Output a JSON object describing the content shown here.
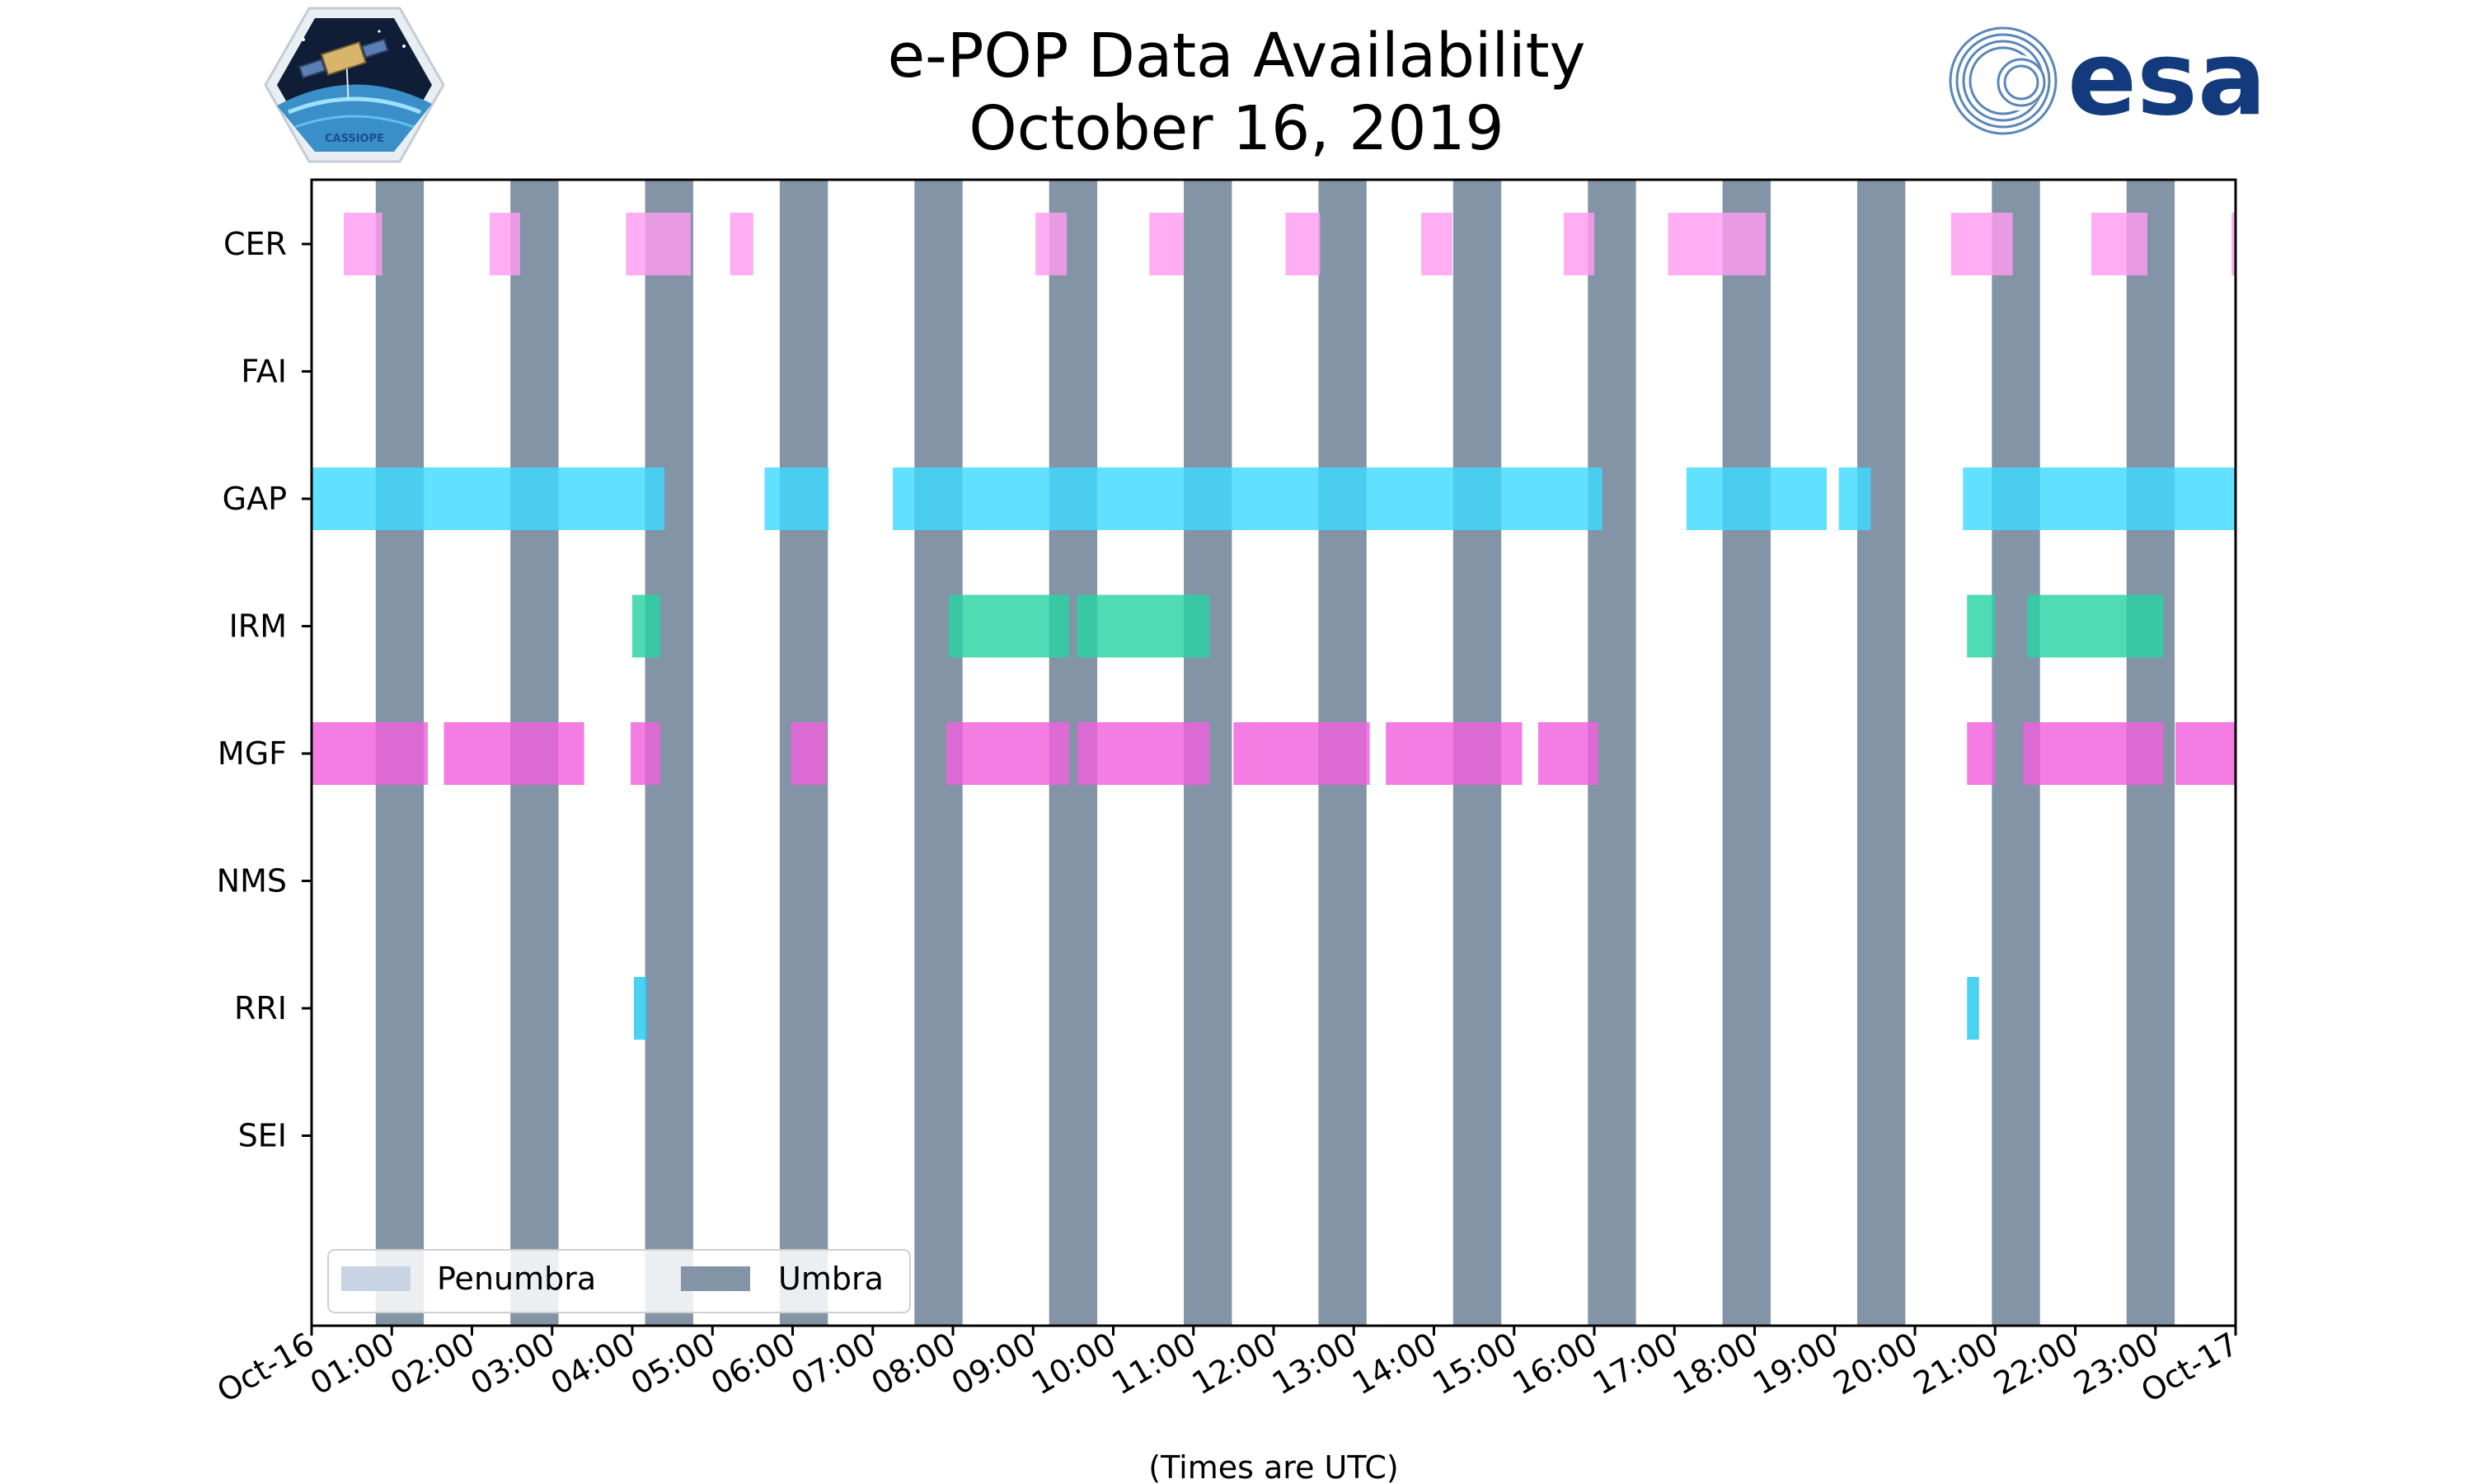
{
  "title": {
    "line1": "e-POP Data Availability",
    "line2": "October 16, 2019"
  },
  "logos": {
    "left": {
      "text": "CASSIOPE"
    },
    "right": {
      "text": "esa"
    }
  },
  "colors": {
    "umbra": "#8294a6",
    "penumbra": "#c8d4e3",
    "CER": "#ff9cf0",
    "GAP": "#3fd9ff",
    "IRM": "#28d3a3",
    "MGF": "#f060dd",
    "RRI": "#22c8f0"
  },
  "chart_data": {
    "type": "timeline",
    "title": "e-POP Data Availability October 16, 2019",
    "xlabel": "(Times are UTC)",
    "xlim_hours": [
      0,
      24
    ],
    "x_tick_labels": [
      "Oct-16",
      "01:00",
      "02:00",
      "03:00",
      "04:00",
      "05:00",
      "06:00",
      "07:00",
      "08:00",
      "09:00",
      "10:00",
      "11:00",
      "12:00",
      "13:00",
      "14:00",
      "15:00",
      "16:00",
      "17:00",
      "18:00",
      "19:00",
      "20:00",
      "21:00",
      "22:00",
      "23:00",
      "Oct-17"
    ],
    "categories": [
      "CER",
      "FAI",
      "GAP",
      "IRM",
      "MGF",
      "NMS",
      "RRI",
      "SEI"
    ],
    "umbra_intervals_hours": [
      [
        0.8,
        1.4
      ],
      [
        2.48,
        3.08
      ],
      [
        4.16,
        4.76
      ],
      [
        5.84,
        6.44
      ],
      [
        7.52,
        8.12
      ],
      [
        9.2,
        9.8
      ],
      [
        10.88,
        11.48
      ],
      [
        12.56,
        13.16
      ],
      [
        14.24,
        14.84
      ],
      [
        15.92,
        16.52
      ],
      [
        17.6,
        18.2
      ],
      [
        19.28,
        19.88
      ],
      [
        20.96,
        21.56
      ],
      [
        22.64,
        23.24
      ]
    ],
    "series": [
      {
        "name": "CER",
        "intervals_hours": [
          [
            0.4,
            0.88
          ],
          [
            2.22,
            2.6
          ],
          [
            3.92,
            4.73
          ],
          [
            5.22,
            5.51
          ],
          [
            9.03,
            9.42
          ],
          [
            10.45,
            10.88
          ],
          [
            12.15,
            12.58
          ],
          [
            13.84,
            14.23
          ],
          [
            15.62,
            16.0
          ],
          [
            16.92,
            18.14
          ],
          [
            20.45,
            21.22
          ],
          [
            22.2,
            22.9
          ],
          [
            23.95,
            24.0
          ]
        ]
      },
      {
        "name": "FAI",
        "intervals_hours": []
      },
      {
        "name": "GAP",
        "intervals_hours": [
          [
            0.0,
            4.4
          ],
          [
            5.65,
            6.45
          ],
          [
            7.25,
            10.0
          ],
          [
            10.0,
            16.1
          ],
          [
            17.15,
            18.9
          ],
          [
            19.05,
            19.45
          ],
          [
            20.6,
            24.0
          ]
        ]
      },
      {
        "name": "IRM",
        "intervals_hours": [
          [
            4.0,
            4.35
          ],
          [
            7.95,
            9.45
          ],
          [
            9.55,
            11.2
          ],
          [
            20.65,
            21.0
          ],
          [
            21.4,
            23.1
          ]
        ]
      },
      {
        "name": "MGF",
        "intervals_hours": [
          [
            0.0,
            1.45
          ],
          [
            1.65,
            3.4
          ],
          [
            3.98,
            4.35
          ],
          [
            5.98,
            6.42
          ],
          [
            7.92,
            9.45
          ],
          [
            9.55,
            11.2
          ],
          [
            11.5,
            13.2
          ],
          [
            13.4,
            15.1
          ],
          [
            15.3,
            16.05
          ],
          [
            20.65,
            21.0
          ],
          [
            21.35,
            23.1
          ],
          [
            23.25,
            24.0
          ]
        ]
      },
      {
        "name": "NMS",
        "intervals_hours": []
      },
      {
        "name": "RRI",
        "intervals_hours": [
          [
            4.02,
            4.18
          ],
          [
            20.65,
            20.8
          ]
        ]
      },
      {
        "name": "SEI",
        "intervals_hours": []
      }
    ],
    "legend": {
      "position": "lower-left",
      "entries": [
        "Penumbra",
        "Umbra"
      ]
    }
  }
}
